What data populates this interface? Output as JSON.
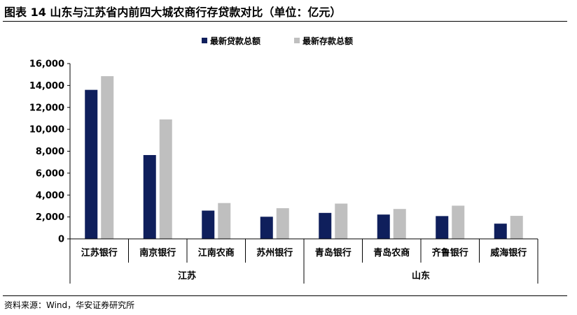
{
  "title": "图表 14 山东与江苏省内前四大城农商行存贷款对比（单位：亿元）",
  "source": "资料来源：Wind，华安证券研究所",
  "colors": {
    "loan": "#0f1f5c",
    "deposit": "#bfbfbf"
  },
  "chart_data": {
    "type": "bar",
    "categories": [
      "江苏银行",
      "南京银行",
      "江南农商",
      "苏州银行",
      "青岛银行",
      "青岛农商",
      "齐鲁银行",
      "威海银行"
    ],
    "groups": [
      {
        "name": "江苏",
        "categories": [
          "江苏银行",
          "南京银行",
          "江南农商",
          "苏州银行"
        ]
      },
      {
        "name": "山东",
        "categories": [
          "青岛银行",
          "青岛农商",
          "齐鲁银行",
          "威海银行"
        ]
      }
    ],
    "series": [
      {
        "name": "最新贷款总额",
        "values": [
          13600,
          7650,
          2580,
          2020,
          2370,
          2220,
          2080,
          1390
        ]
      },
      {
        "name": "最新存款总额",
        "values": [
          14850,
          10900,
          3270,
          2800,
          3220,
          2730,
          3030,
          2100
        ]
      }
    ],
    "yticks": [
      "0",
      "2,000",
      "4,000",
      "6,000",
      "8,000",
      "10,000",
      "12,000",
      "14,000",
      "16,000"
    ],
    "ylim": [
      0,
      16000
    ],
    "grid": false,
    "legend_position": "top-center"
  }
}
